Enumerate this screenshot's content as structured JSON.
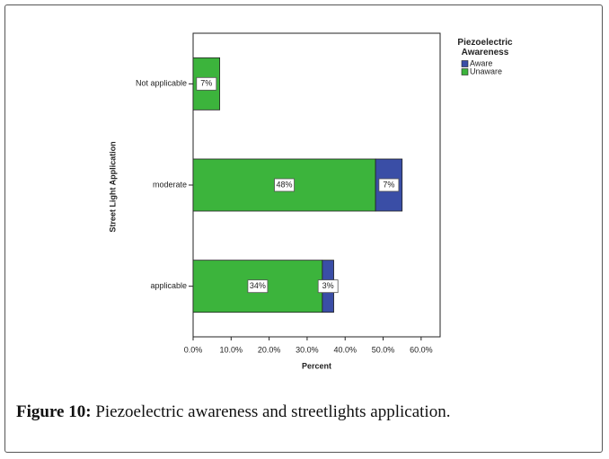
{
  "chart_data": {
    "type": "stacked-barh",
    "categories": [
      "Not applicable",
      "moderate",
      "applicable"
    ],
    "series": [
      {
        "name": "Aware",
        "color": "#3a4ea6",
        "values": [
          null,
          7,
          3
        ],
        "value_labels": [
          null,
          "7%",
          "3%"
        ]
      },
      {
        "name": "Unaware",
        "color": "#3cb43c",
        "values": [
          7,
          48,
          34
        ],
        "value_labels": [
          "7%",
          "48%",
          "34%"
        ]
      }
    ],
    "xlim": [
      0,
      65
    ],
    "xticks": [
      {
        "value": 0,
        "label": "0.0%"
      },
      {
        "value": 10,
        "label": "10.0%"
      },
      {
        "value": 20,
        "label": "20.0%"
      },
      {
        "value": 30,
        "label": "30.0%"
      },
      {
        "value": 40,
        "label": "40.0%"
      },
      {
        "value": 50,
        "label": "50.0%"
      },
      {
        "value": 60,
        "label": "60.0%"
      }
    ],
    "x_label": "Percent",
    "y_label": "Street Light Application",
    "legend_title": "Piezoelectric Awareness",
    "legend_position": "upper right"
  },
  "caption": {
    "label": "Figure 10:",
    "text": "Piezoelectric awareness and streetlights application."
  }
}
